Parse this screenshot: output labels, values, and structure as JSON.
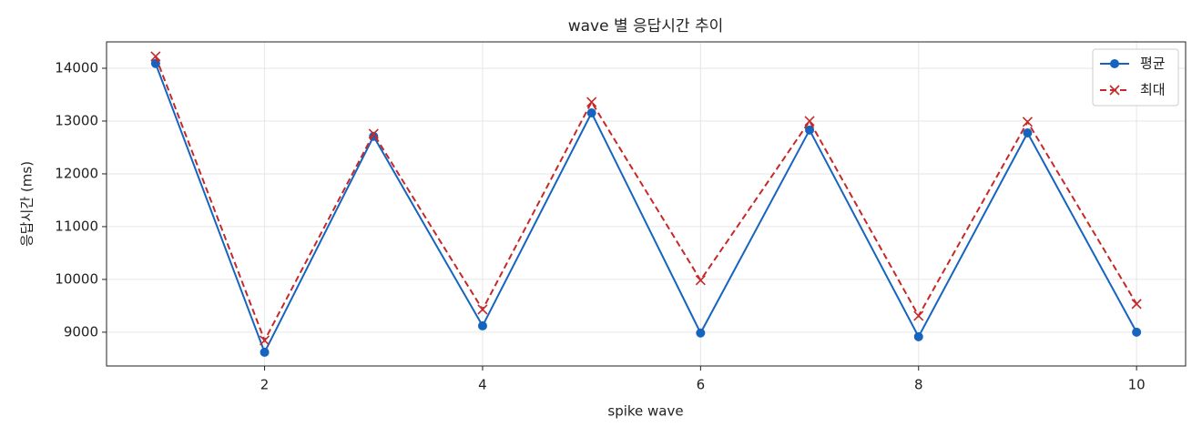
{
  "chart_data": {
    "type": "line",
    "title": "wave 별 응답시간 추이",
    "xlabel": "spike wave",
    "ylabel": "응답시간 (ms)",
    "x": [
      1,
      2,
      3,
      4,
      5,
      6,
      7,
      8,
      9,
      10
    ],
    "series": [
      {
        "name": "평균",
        "color": "#1565c0",
        "marker": "circle",
        "linestyle": "solid",
        "values": [
          14090,
          8620,
          12710,
          9120,
          13155,
          8985,
          12830,
          8915,
          12775,
          9000
        ]
      },
      {
        "name": "최대",
        "color": "#c62828",
        "marker": "x",
        "linestyle": "dashed",
        "values": [
          14225,
          8845,
          12760,
          9430,
          13360,
          9985,
          13000,
          9310,
          12985,
          9535
        ]
      }
    ],
    "xlim": [
      0.55,
      10.45
    ],
    "xticks": [
      2,
      4,
      6,
      8,
      10
    ],
    "ylim": [
      8360,
      14500
    ],
    "yticks": [
      9000,
      10000,
      11000,
      12000,
      13000,
      14000
    ],
    "grid": true,
    "legend": "upper right"
  }
}
